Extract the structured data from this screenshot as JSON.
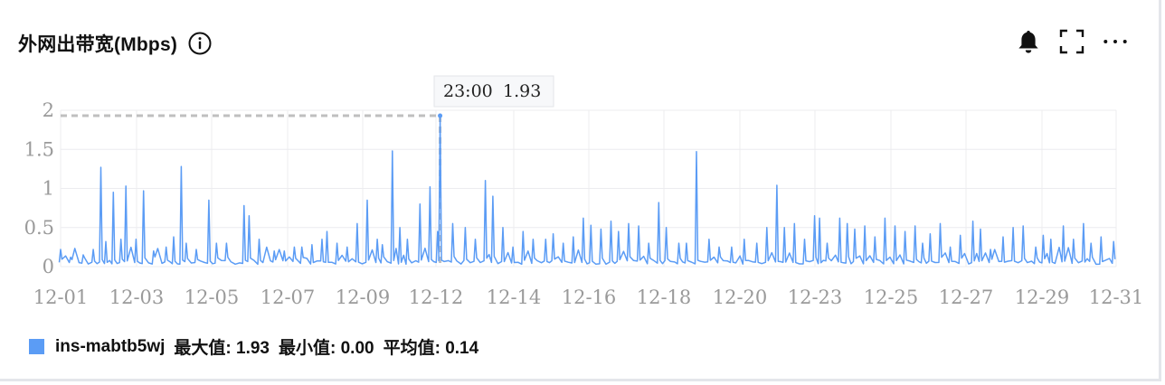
{
  "header": {
    "title": "外网出带宽(Mbps)"
  },
  "toolbar": {
    "icons": [
      "bell-icon",
      "fullscreen-icon",
      "more-icon"
    ]
  },
  "colors": {
    "series": "#5b9cf5",
    "grid": "#ececef",
    "axis_text": "#9a9a9a",
    "crosshair": "#bfbfbf"
  },
  "tooltip": {
    "time": "23:00",
    "value": "1.93"
  },
  "legend": {
    "name": "ins-mabtb5wj",
    "max": "最大值: 1.93",
    "min": "最小值: 0.00",
    "avg": "平均值: 0.14"
  },
  "chart_data": {
    "type": "line",
    "xlabel": "",
    "ylabel": "",
    "ylim": [
      0,
      2
    ],
    "yticks": [
      "0",
      "0.5",
      "1",
      "1.5",
      "2"
    ],
    "xticks": [
      "12-01",
      "12-03",
      "12-05",
      "12-07",
      "12-09",
      "12-12",
      "12-14",
      "12-16",
      "12-18",
      "12-20",
      "12-23",
      "12-25",
      "12-27",
      "12-29",
      "12-31"
    ],
    "grid": true,
    "legend": "bottom-left",
    "series": [
      {
        "name": "ins-mabtb5wj",
        "peaks": [
          [
            0.0,
            0.22
          ],
          [
            0.4,
            0.12
          ],
          [
            0.9,
            0.15
          ],
          [
            1.3,
            0.22
          ],
          [
            1.6,
            1.27
          ],
          [
            1.8,
            0.32
          ],
          [
            2.1,
            0.95
          ],
          [
            2.4,
            0.35
          ],
          [
            2.6,
            1.03
          ],
          [
            3.0,
            0.35
          ],
          [
            3.3,
            0.97
          ],
          [
            3.7,
            0.2
          ],
          [
            4.2,
            0.25
          ],
          [
            4.5,
            0.38
          ],
          [
            4.8,
            1.28
          ],
          [
            5.0,
            0.3
          ],
          [
            5.4,
            0.22
          ],
          [
            5.9,
            0.85
          ],
          [
            6.2,
            0.3
          ],
          [
            6.6,
            0.3
          ],
          [
            7.3,
            0.78
          ],
          [
            7.5,
            0.65
          ],
          [
            7.9,
            0.35
          ],
          [
            8.5,
            0.2
          ],
          [
            8.9,
            0.2
          ],
          [
            9.3,
            0.25
          ],
          [
            9.6,
            0.25
          ],
          [
            10.0,
            0.28
          ],
          [
            10.4,
            0.35
          ],
          [
            10.6,
            0.45
          ],
          [
            11.0,
            0.3
          ],
          [
            11.4,
            0.25
          ],
          [
            11.8,
            0.55
          ],
          [
            12.2,
            0.85
          ],
          [
            12.6,
            0.35
          ],
          [
            12.8,
            0.28
          ],
          [
            13.2,
            1.48
          ],
          [
            13.5,
            0.5
          ],
          [
            13.8,
            0.35
          ],
          [
            14.3,
            0.8
          ],
          [
            14.7,
            1.02
          ],
          [
            15.0,
            0.45
          ],
          [
            15.1,
            1.93
          ],
          [
            15.6,
            0.55
          ],
          [
            16.1,
            0.5
          ],
          [
            16.5,
            0.35
          ],
          [
            16.9,
            1.1
          ],
          [
            17.2,
            0.9
          ],
          [
            17.6,
            0.5
          ],
          [
            18.0,
            0.25
          ],
          [
            18.4,
            0.45
          ],
          [
            18.8,
            0.35
          ],
          [
            19.3,
            0.35
          ],
          [
            19.6,
            0.42
          ],
          [
            20.0,
            0.3
          ],
          [
            20.4,
            0.38
          ],
          [
            20.8,
            0.62
          ],
          [
            21.1,
            0.53
          ],
          [
            21.5,
            0.48
          ],
          [
            21.9,
            0.58
          ],
          [
            22.2,
            0.45
          ],
          [
            22.6,
            0.55
          ],
          [
            23.0,
            0.52
          ],
          [
            23.4,
            0.3
          ],
          [
            23.8,
            0.82
          ],
          [
            24.1,
            0.5
          ],
          [
            24.6,
            0.3
          ],
          [
            24.9,
            0.3
          ],
          [
            25.3,
            1.47
          ],
          [
            25.8,
            0.35
          ],
          [
            26.2,
            0.25
          ],
          [
            26.7,
            0.25
          ],
          [
            27.2,
            0.35
          ],
          [
            27.7,
            0.3
          ],
          [
            28.1,
            0.5
          ],
          [
            28.5,
            1.04
          ],
          [
            28.8,
            0.5
          ],
          [
            29.2,
            0.55
          ],
          [
            29.6,
            0.35
          ],
          [
            30.0,
            0.65
          ],
          [
            30.2,
            0.62
          ],
          [
            30.5,
            0.3
          ],
          [
            31.0,
            0.62
          ],
          [
            31.3,
            0.55
          ],
          [
            31.6,
            0.48
          ],
          [
            32.0,
            0.52
          ],
          [
            32.4,
            0.38
          ],
          [
            32.8,
            0.62
          ],
          [
            33.2,
            0.52
          ],
          [
            33.6,
            0.45
          ],
          [
            34.0,
            0.52
          ],
          [
            34.3,
            0.3
          ],
          [
            34.6,
            0.42
          ],
          [
            35.0,
            0.55
          ],
          [
            35.4,
            0.25
          ],
          [
            35.8,
            0.4
          ],
          [
            36.3,
            0.58
          ],
          [
            36.6,
            0.48
          ],
          [
            37.0,
            0.22
          ],
          [
            37.5,
            0.38
          ],
          [
            37.9,
            0.5
          ],
          [
            38.3,
            0.52
          ],
          [
            38.8,
            0.25
          ],
          [
            39.1,
            0.4
          ],
          [
            39.4,
            0.35
          ],
          [
            39.9,
            0.52
          ],
          [
            40.3,
            0.35
          ],
          [
            40.7,
            0.55
          ],
          [
            41.0,
            0.3
          ],
          [
            41.4,
            0.38
          ],
          [
            41.9,
            0.32
          ]
        ],
        "values_note": ""
      }
    ]
  }
}
